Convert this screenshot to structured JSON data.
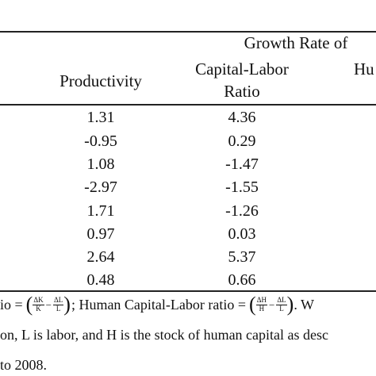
{
  "header": {
    "growth_rate_of": "Growth Rate of",
    "productivity": "Productivity",
    "capital_labor_1": "Capital-Labor",
    "capital_labor_2": "Ratio",
    "human_partial": "Hu"
  },
  "rows": [
    {
      "productivity": "1.31",
      "capital_labor": "4.36"
    },
    {
      "productivity": "-0.95",
      "capital_labor": "0.29"
    },
    {
      "productivity": "1.08",
      "capital_labor": "-1.47"
    },
    {
      "productivity": "-2.97",
      "capital_labor": "-1.55"
    },
    {
      "productivity": "1.71",
      "capital_labor": "-1.26"
    },
    {
      "productivity": "0.97",
      "capital_labor": "0.03"
    },
    {
      "productivity": "2.64",
      "capital_labor": "5.37"
    },
    {
      "productivity": "0.48",
      "capital_labor": "0.66"
    }
  ],
  "notes": {
    "line1_prefix": "io =",
    "f1_num_a": "ΔK",
    "f1_den_a": "K",
    "f1_num_b": "ΔL",
    "f1_den_b": "L",
    "line1_mid": "; Human Capital-Labor ratio =",
    "f2_num_a": "ΔH",
    "f2_den_a": "H",
    "f2_num_b": "ΔL",
    "f2_den_b": "L",
    "line1_suffix": ". W",
    "line2": "on, L is labor, and H is the stock of human capital as desc",
    "line3": "to 2008."
  }
}
